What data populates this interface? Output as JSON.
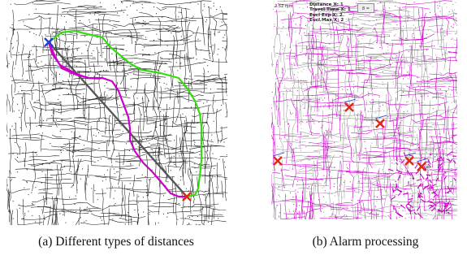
{
  "captions": {
    "a": "(a)  Different types of distances",
    "b": "(b)  Alarm processing"
  },
  "panel_b": {
    "scale_label": "2.52 mm",
    "legend": [
      "Distance X: 1",
      "Travel Time X: 1",
      "Eucl Exp X: 2",
      "Eucl Max X: 2"
    ],
    "button_label": "8 ="
  },
  "colors": {
    "road": "#1a1a1a",
    "path_magenta": "#cc00cc",
    "path_green": "#33dd11",
    "straight_line": "#555555",
    "start_marker": "#1f3fd6",
    "end_marker": "#dd2a10",
    "bg": "#ffffff"
  },
  "icons": {
    "start": "x-marker-icon",
    "end": "x-marker-icon"
  }
}
